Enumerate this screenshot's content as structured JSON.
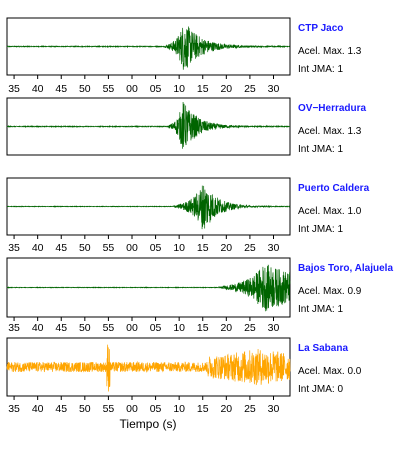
{
  "chart_data": {
    "type": "line",
    "subtype": "seismogram",
    "xlabel": "Tiempo (s)",
    "x_tick_labels": [
      "35",
      "40",
      "45",
      "50",
      "55",
      "00",
      "05",
      "10",
      "15",
      "20",
      "25",
      "30"
    ],
    "x_range": [
      33.5,
      93.5
    ],
    "acel_label": "Acel. Max.",
    "int_label": "Int JMA:",
    "panels": [
      {
        "station": "CTP Jaco",
        "acel_max": "1.3",
        "int_jma": "1",
        "color": "#006400",
        "onset": 66.8,
        "peak": 71.0,
        "decay": 3.5,
        "amp": 0.95,
        "noise": 0.015,
        "show_axis": true
      },
      {
        "station": "OV−Herradura",
        "acel_max": "1.3",
        "int_jma": "1",
        "color": "#006400",
        "onset": 67.5,
        "peak": 70.8,
        "decay": 3.0,
        "amp": 0.95,
        "noise": 0.015,
        "show_axis": false
      },
      {
        "station": "Puerto Caldera",
        "acel_max": "1.0",
        "int_jma": "1",
        "color": "#006400",
        "onset": 68.5,
        "peak": 75.2,
        "decay": 2.8,
        "amp": 0.95,
        "noise": 0.01,
        "show_axis": true
      },
      {
        "station": "Bajos Toro, Alajuela",
        "acel_max": "0.9",
        "int_jma": "1",
        "color": "#006400",
        "onset": 78.0,
        "peak": 88.0,
        "decay": 12.0,
        "amp": 0.85,
        "noise": 0.01,
        "show_axis": true
      },
      {
        "station": "La Sabana",
        "acel_max": "0.0",
        "int_jma": "0",
        "color": "#ffa500",
        "onset": 0,
        "peak": 55.0,
        "decay": 0,
        "amp": 0.9,
        "noise": 0.18,
        "show_axis": true
      }
    ]
  }
}
